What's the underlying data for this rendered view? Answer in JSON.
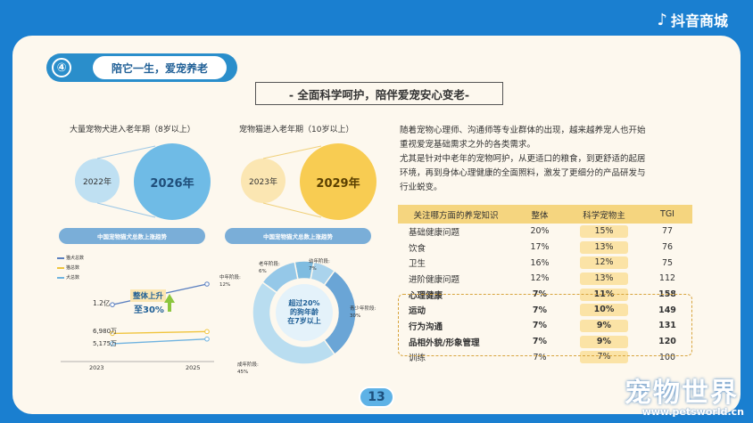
{
  "brand": {
    "name": "抖音商城",
    "icon": "music-note-icon"
  },
  "section": {
    "number": "④",
    "title": "陪它一生，爱宠养老"
  },
  "banner": "- 全面科学呵护，陪伴爱宠安心变老-",
  "dog_stat": {
    "label": "大量宠物犬进入老年期（8岁以上）",
    "year_from": "2022年",
    "year_to": "2026年"
  },
  "cat_stat": {
    "label": "宠物猫进入老年期（10岁以上）",
    "year_from": "2023年",
    "year_to": "2029年"
  },
  "trend_chart": {
    "title": "中国宠物猫犬总数上涨趋势",
    "legend": [
      "猫犬总数",
      "猫总数",
      "犬总数"
    ],
    "label_top": "1.2亿",
    "label_mid": "6,980万",
    "label_low": "5,175万",
    "callout": "整体上升",
    "callout_pct": "至30%",
    "x_start": "2023",
    "x_end": "2025"
  },
  "chart_data": [
    {
      "type": "line",
      "title": "中国宠物猫犬总数上涨趋势",
      "x": [
        "2023",
        "2025"
      ],
      "series": [
        {
          "name": "猫犬总数",
          "values": [
            1.2,
            1.56
          ]
        },
        {
          "name": "猫总数",
          "values": [
            0.698,
            0.73
          ]
        },
        {
          "name": "犬总数",
          "values": [
            0.5175,
            0.6
          ]
        }
      ],
      "colors": [
        "#5a7fc0",
        "#f0c43d",
        "#6fb3e0"
      ]
    },
    {
      "type": "pie",
      "title": "中国宠物猫犬总数上涨趋势",
      "labels": [
        "老年阶段",
        "幼年阶段",
        "青少年阶段",
        "成年阶段",
        "中年阶段"
      ],
      "values": [
        6,
        7,
        30,
        45,
        12
      ],
      "colors": [
        "#7fbce0",
        "#aad3ec",
        "#6aa5d6",
        "#b9ddf0",
        "#95c8e8"
      ],
      "center": [
        "超过20%",
        "的狗年龄",
        "在7岁以上"
      ]
    }
  ],
  "donut_labels": {
    "old": [
      "老年阶段:",
      "6%"
    ],
    "young": [
      "幼年阶段:",
      "7%"
    ],
    "teen": [
      "青少年阶段:",
      "30%"
    ],
    "adult": [
      "成年阶段:",
      "45%"
    ],
    "middle": [
      "中年阶段:",
      "12%"
    ]
  },
  "paragraph": [
    "随着宠物心理师、沟通师等专业群体的出现，越来越养宠人也开始",
    "重视爱宠基础需求之外的各类需求。",
    "尤其是针对中老年的宠物呵护，从更适口的粮食，到更舒适的起居",
    "环境，再到身体心理健康的全面照料，激发了更细分的产品研发与",
    "行业蜕变。"
  ],
  "table": {
    "headers": [
      "关注哪方面的养宠知识",
      "整体",
      "科学宠物主",
      "TGI"
    ],
    "rows": [
      {
        "name": "基础健康问题",
        "overall": "20%",
        "sci": "15%",
        "tgi": "77",
        "hl": false
      },
      {
        "name": "饮食",
        "overall": "17%",
        "sci": "13%",
        "tgi": "76",
        "hl": false
      },
      {
        "name": "卫生",
        "overall": "16%",
        "sci": "12%",
        "tgi": "75",
        "hl": false
      },
      {
        "name": "进阶健康问题",
        "overall": "12%",
        "sci": "13%",
        "tgi": "112",
        "hl": false
      },
      {
        "name": "心理健康",
        "overall": "7%",
        "sci": "11%",
        "tgi": "158",
        "hl": true
      },
      {
        "name": "运动",
        "overall": "7%",
        "sci": "10%",
        "tgi": "149",
        "hl": true
      },
      {
        "name": "行为沟通",
        "overall": "7%",
        "sci": "9%",
        "tgi": "131",
        "hl": true
      },
      {
        "name": "品相外貌/形象管理",
        "overall": "7%",
        "sci": "9%",
        "tgi": "120",
        "hl": true
      },
      {
        "name": "训练",
        "overall": "7%",
        "sci": "7%",
        "tgi": "100",
        "hl": false
      }
    ]
  },
  "page_number": "13",
  "watermark": {
    "text": "宠物世界",
    "url": "www.petsworld.cn"
  }
}
